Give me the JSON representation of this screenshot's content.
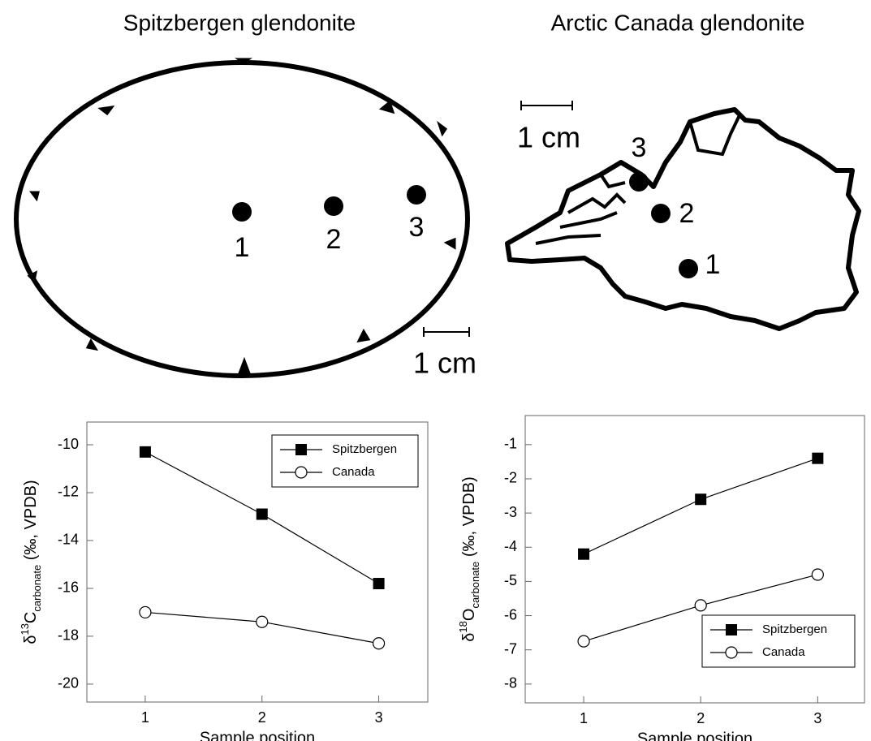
{
  "diagrams": [
    {
      "title": "Spitzbergen glendonite",
      "samples": [
        "1",
        "2",
        "3"
      ],
      "scale": "1 cm"
    },
    {
      "title": "Arctic Canada glendonite",
      "samples": [
        "1",
        "2",
        "3"
      ],
      "scale": "1 cm"
    }
  ],
  "chart_data": [
    {
      "type": "line",
      "xlabel": "Sample position",
      "ylabel": {
        "symbol": "δ",
        "isotope": "13",
        "element": "C",
        "subscript": "carbonate",
        "units": " (‰, VPDB)"
      },
      "x": [
        1,
        2,
        3
      ],
      "xlim": [
        0.5,
        3.42
      ],
      "xticks": [
        1,
        2,
        3
      ],
      "ylim": [
        -20.75,
        -9.05
      ],
      "yticks": [
        -10,
        -12,
        -14,
        -16,
        -18,
        -20
      ],
      "legend": "upper right",
      "series": [
        {
          "name": "Spitzbergen",
          "color": "#000000",
          "marker": "square",
          "values": [
            -10.3,
            -12.9,
            -15.8
          ]
        },
        {
          "name": "Canada",
          "color": "#000000",
          "marker": "circle",
          "values": [
            -17.0,
            -17.4,
            -18.3
          ]
        }
      ]
    },
    {
      "type": "line",
      "xlabel": "Sample position",
      "ylabel": {
        "symbol": "δ",
        "isotope": "18",
        "element": "O",
        "subscript": "carbonate",
        "units": " (‰, VPDB)"
      },
      "x": [
        1,
        2,
        3
      ],
      "xlim": [
        0.5,
        3.4
      ],
      "xticks": [
        1,
        2,
        3
      ],
      "ylim": [
        -8.55,
        -0.15
      ],
      "yticks": [
        -1,
        -2,
        -3,
        -4,
        -5,
        -6,
        -7,
        -8
      ],
      "legend": "lower right",
      "series": [
        {
          "name": "Spitzbergen",
          "color": "#000000",
          "marker": "square",
          "values": [
            -4.2,
            -2.6,
            -1.4
          ]
        },
        {
          "name": "Canada",
          "color": "#000000",
          "marker": "circle",
          "values": [
            -6.75,
            -5.7,
            -4.8
          ]
        }
      ]
    }
  ]
}
